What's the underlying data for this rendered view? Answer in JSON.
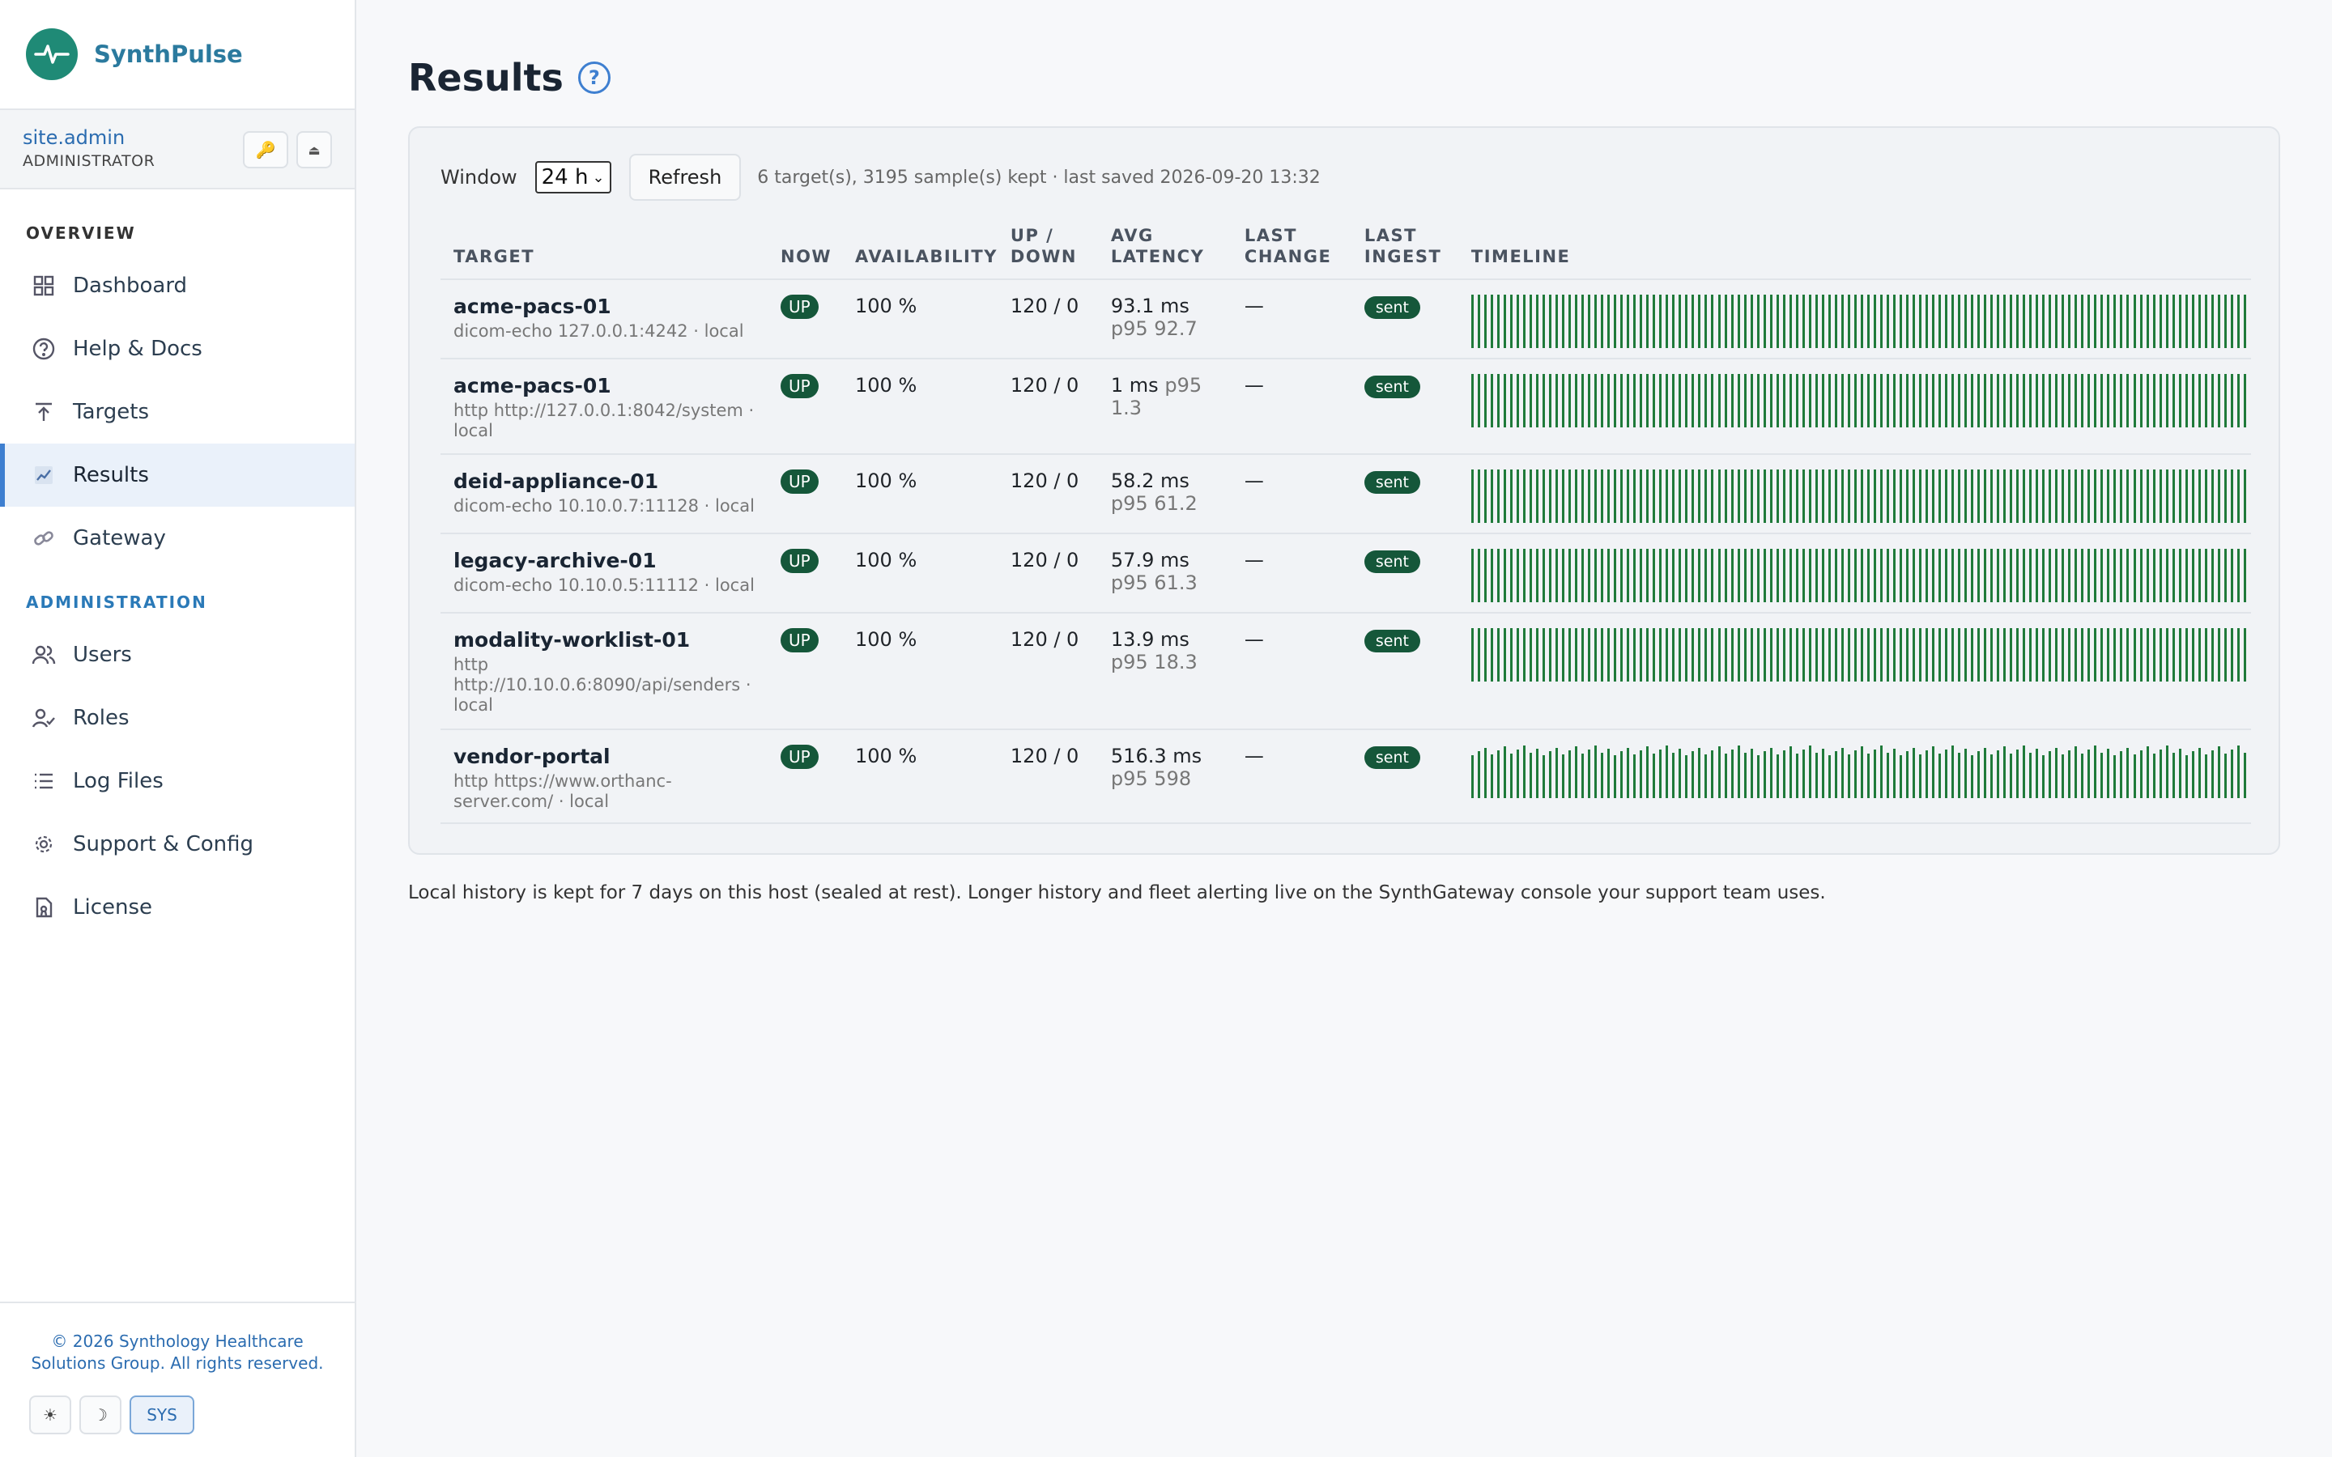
{
  "brand": {
    "name": "SynthPulse"
  },
  "user": {
    "name": "site.admin",
    "role": "ADMINISTRATOR"
  },
  "nav": {
    "overview_label": "OVERVIEW",
    "admin_label": "ADMINISTRATION",
    "overview": [
      {
        "label": "Dashboard",
        "icon": "grid-icon"
      },
      {
        "label": "Help & Docs",
        "icon": "question-circle-icon"
      },
      {
        "label": "Targets",
        "icon": "upload-icon"
      },
      {
        "label": "Results",
        "icon": "chart-icon",
        "active": true
      },
      {
        "label": "Gateway",
        "icon": "link-icon"
      }
    ],
    "admin": [
      {
        "label": "Users",
        "icon": "users-icon"
      },
      {
        "label": "Roles",
        "icon": "user-check-icon"
      },
      {
        "label": "Log Files",
        "icon": "list-icon"
      },
      {
        "label": "Support & Config",
        "icon": "gear-icon"
      },
      {
        "label": "License",
        "icon": "file-icon"
      }
    ]
  },
  "footer": {
    "copyright": "© 2026 Synthology Healthcare Solutions Group. All rights reserved.",
    "theme_light": "☀",
    "theme_dark": "☽",
    "theme_sys": "SYS"
  },
  "page": {
    "title": "Results",
    "help": "?"
  },
  "toolbar": {
    "window_label": "Window",
    "window_value": "24 h",
    "refresh_label": "Refresh",
    "status": "6 target(s), 3195 sample(s) kept · last saved 2026-09-20 13:32"
  },
  "table": {
    "headers": [
      "TARGET",
      "NOW",
      "AVAILABILITY",
      "UP / DOWN",
      "AVG LATENCY",
      "LAST CHANGE",
      "LAST INGEST",
      "TIMELINE"
    ],
    "rows": [
      {
        "name": "acme-pacs-01",
        "sub": "dicom-echo 127.0.0.1:4242 · local",
        "now": "UP",
        "availability": "100 %",
        "updown": "120 / 0",
        "latency": "93.1 ms",
        "p95": "p95 92.7",
        "last_change": "—",
        "ingest": "sent",
        "timeline_level": 1.0
      },
      {
        "name": "acme-pacs-01",
        "sub": "http http://127.0.0.1:8042/system · local",
        "now": "UP",
        "availability": "100 %",
        "updown": "120 / 0",
        "latency": "1 ms",
        "p95": "p95 1.3",
        "last_change": "—",
        "ingest": "sent",
        "timeline_level": 1.0
      },
      {
        "name": "deid-appliance-01",
        "sub": "dicom-echo 10.10.0.7:11128 · local",
        "now": "UP",
        "availability": "100 %",
        "updown": "120 / 0",
        "latency": "58.2 ms",
        "p95": "p95 61.2",
        "last_change": "—",
        "ingest": "sent",
        "timeline_level": 1.0
      },
      {
        "name": "legacy-archive-01",
        "sub": "dicom-echo 10.10.0.5:11112 · local",
        "now": "UP",
        "availability": "100 %",
        "updown": "120 / 0",
        "latency": "57.9 ms",
        "p95": "p95 61.3",
        "last_change": "—",
        "ingest": "sent",
        "timeline_level": 1.0
      },
      {
        "name": "modality-worklist-01",
        "sub": "http http://10.10.0.6:8090/api/senders · local",
        "now": "UP",
        "availability": "100 %",
        "updown": "120 / 0",
        "latency": "13.9 ms",
        "p95": "p95 18.3",
        "last_change": "—",
        "ingest": "sent",
        "timeline_level": 1.0
      },
      {
        "name": "vendor-portal",
        "sub": "http https://www.orthanc-server.com/ · local",
        "now": "UP",
        "availability": "100 %",
        "updown": "120 / 0",
        "latency": "516.3 ms",
        "p95": "p95 598",
        "last_change": "—",
        "ingest": "sent",
        "timeline_level": 0.8
      }
    ]
  },
  "note": "Local history is kept for 7 days on this host (sealed at rest). Longer history and fleet alerting live on the SynthGateway console your support team uses.",
  "colors": {
    "accent": "#3e7fd0",
    "brand": "#1f8a76",
    "up_badge": "#15573a",
    "timeline": "#1f7a3a"
  }
}
